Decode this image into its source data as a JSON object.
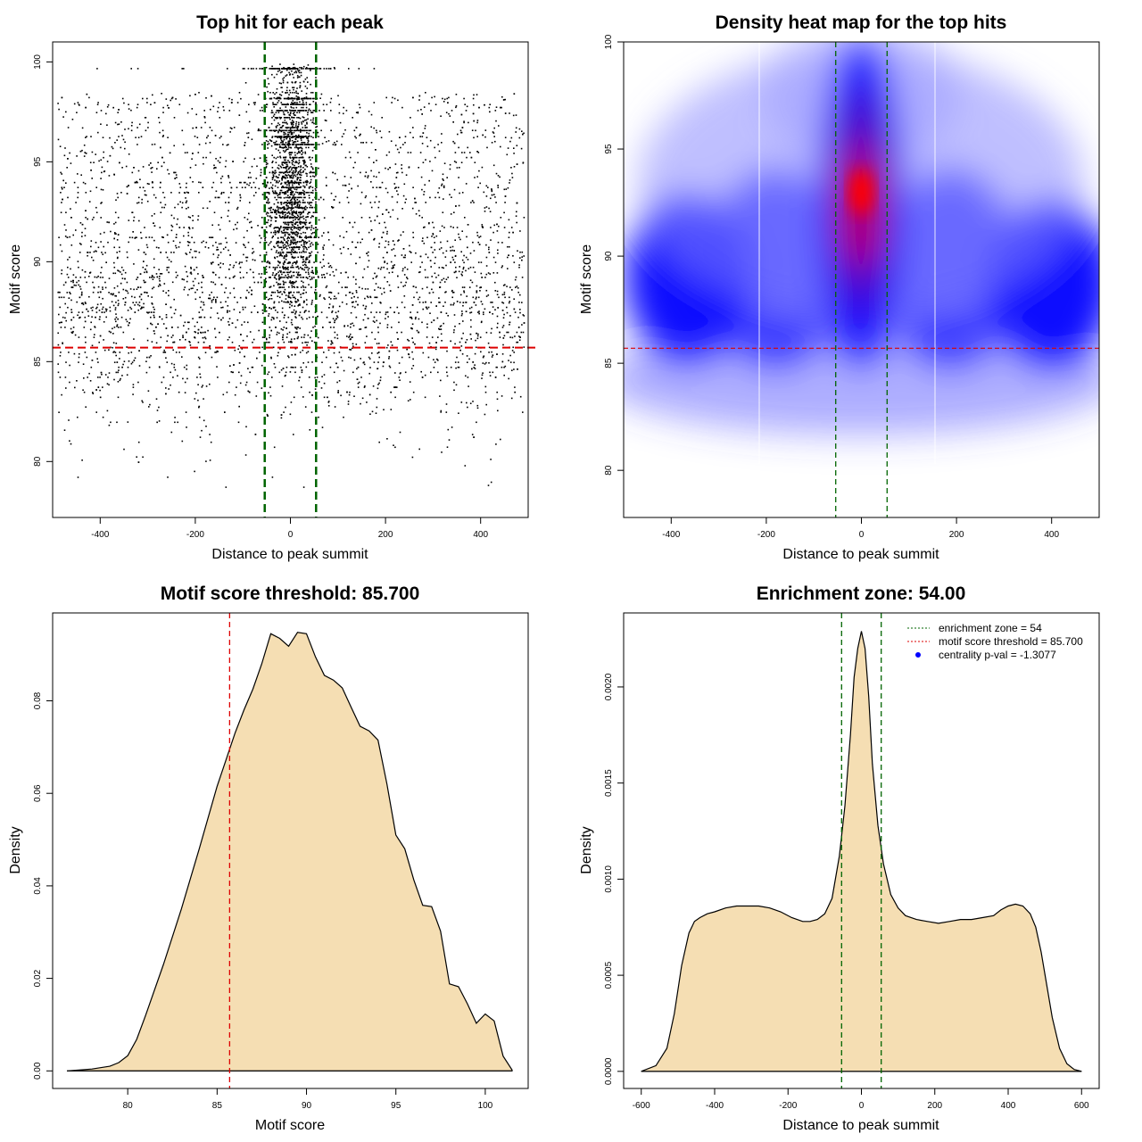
{
  "chart_data": [
    {
      "id": "scatter",
      "type": "scatter",
      "title": "Top hit for each peak",
      "xlabel": "Distance to peak summit",
      "ylabel": "Motif score",
      "xlim": [
        -500,
        500
      ],
      "ylim": [
        77.2,
        101
      ],
      "x_ticks": [
        -400,
        -200,
        0,
        200,
        400
      ],
      "y_ticks": [
        80,
        85,
        90,
        95,
        100
      ],
      "threshold_y": 85.7,
      "enrichment_x": [
        -54,
        54
      ],
      "threshold_color": "#dd0000",
      "zone_color": "#006400",
      "point_color": "#000000",
      "summary": {
        "x_range": [
          -490,
          490
        ],
        "score_mode_flank": 88.3,
        "score_mode_center": 92.8,
        "center_halfwidth": 54
      }
    },
    {
      "id": "heatmap",
      "type": "heatmap",
      "title": "Density heat map for the top hits",
      "xlabel": "Distance to peak summit",
      "ylabel": "Motif score",
      "xlim": [
        -500,
        500
      ],
      "ylim": [
        77.8,
        100
      ],
      "x_ticks": [
        -400,
        -200,
        0,
        200,
        400
      ],
      "y_ticks": [
        80,
        85,
        90,
        95,
        100
      ],
      "threshold_y": 85.7,
      "enrichment_x": [
        -54,
        54
      ],
      "peak": {
        "x": 0,
        "y": 93
      },
      "colors": [
        "#ffffff",
        "#0000ff",
        "#ff0000"
      ]
    },
    {
      "id": "score-density",
      "type": "area",
      "title": "Motif score threshold: 85.700",
      "xlabel": "Motif score",
      "ylabel": "Density",
      "xlim": [
        75.8,
        102.4
      ],
      "ylim": [
        -0.0038,
        0.099
      ],
      "x_ticks": [
        80,
        85,
        90,
        95,
        100
      ],
      "y_ticks": [
        0,
        0.02,
        0.04,
        0.06,
        0.08
      ],
      "y_tick_labels": [
        "0.00",
        "0.02",
        "0.04",
        "0.06",
        "0.08"
      ],
      "threshold_x": 85.7,
      "fill": "#f5deb3",
      "x": [
        76.6,
        78,
        79,
        79.5,
        80,
        80.5,
        81,
        82,
        83,
        84,
        85,
        86,
        86.5,
        87,
        87.5,
        88,
        88.5,
        89,
        89.5,
        90,
        90.5,
        91,
        91.5,
        92,
        92.5,
        93,
        93.5,
        94,
        94.5,
        95,
        95.5,
        96,
        96.5,
        97,
        97.5,
        98,
        98.5,
        99,
        99.5,
        100,
        100.5,
        101,
        101.5
      ],
      "y": [
        0.0,
        0.0004,
        0.001,
        0.0018,
        0.0033,
        0.0068,
        0.012,
        0.023,
        0.035,
        0.048,
        0.0615,
        0.073,
        0.078,
        0.0825,
        0.088,
        0.0945,
        0.0935,
        0.0918,
        0.0948,
        0.0945,
        0.0895,
        0.0855,
        0.0845,
        0.0828,
        0.0786,
        0.0745,
        0.0735,
        0.0715,
        0.062,
        0.051,
        0.048,
        0.0413,
        0.0358,
        0.0355,
        0.0302,
        0.0188,
        0.0182,
        0.0145,
        0.0103,
        0.0123,
        0.0108,
        0.0032,
        0.0002
      ]
    },
    {
      "id": "distance-density",
      "type": "area",
      "title": "Enrichment zone: 54.00",
      "xlabel": "Distance to peak summit",
      "ylabel": "Density",
      "xlim": [
        -648,
        648
      ],
      "ylim": [
        -8.9e-05,
        0.002385
      ],
      "x_ticks": [
        -600,
        -400,
        -200,
        0,
        200,
        400,
        600
      ],
      "y_ticks": [
        0,
        0.0005,
        0.001,
        0.0015,
        0.002
      ],
      "y_tick_labels": [
        "0.0000",
        "0.0005",
        "0.0010",
        "0.0015",
        "0.0020"
      ],
      "enrichment_x": [
        -54,
        54
      ],
      "fill": "#f5deb3",
      "x": [
        -600,
        -560,
        -530,
        -510,
        -490,
        -470,
        -455,
        -440,
        -420,
        -400,
        -370,
        -340,
        -310,
        -280,
        -250,
        -220,
        -190,
        -160,
        -140,
        -120,
        -100,
        -80,
        -60,
        -45,
        -30,
        -20,
        -10,
        0,
        10,
        20,
        30,
        45,
        60,
        80,
        100,
        120,
        150,
        180,
        210,
        240,
        270,
        300,
        330,
        360,
        380,
        400,
        420,
        440,
        460,
        475,
        490,
        505,
        520,
        540,
        560,
        580,
        600
      ],
      "y": [
        0.0,
        3e-05,
        0.00012,
        0.0003,
        0.00055,
        0.00072,
        0.00078,
        0.0008,
        0.00082,
        0.00083,
        0.00085,
        0.00086,
        0.00086,
        0.00086,
        0.00085,
        0.00083,
        0.0008,
        0.00078,
        0.00078,
        0.00079,
        0.00082,
        0.0009,
        0.00112,
        0.00138,
        0.00175,
        0.00205,
        0.0022,
        0.00229,
        0.0022,
        0.00195,
        0.0016,
        0.00128,
        0.00108,
        0.00092,
        0.00085,
        0.00081,
        0.00079,
        0.00078,
        0.00077,
        0.00078,
        0.00079,
        0.00079,
        0.0008,
        0.00081,
        0.00084,
        0.00086,
        0.00087,
        0.00086,
        0.00082,
        0.00075,
        0.00062,
        0.00045,
        0.00028,
        0.00012,
        4e-05,
        1e-05,
        0.0
      ]
    }
  ],
  "legend": [
    {
      "label": "enrichment zone = 54",
      "symbol": "dotted-line",
      "color": "#006400"
    },
    {
      "label": "motif score threshold = 85.700",
      "symbol": "dotted-line",
      "color": "#dd0000"
    },
    {
      "label": "centrality p-val = -1.3077",
      "symbol": "dot",
      "color": "#0000ff"
    }
  ]
}
